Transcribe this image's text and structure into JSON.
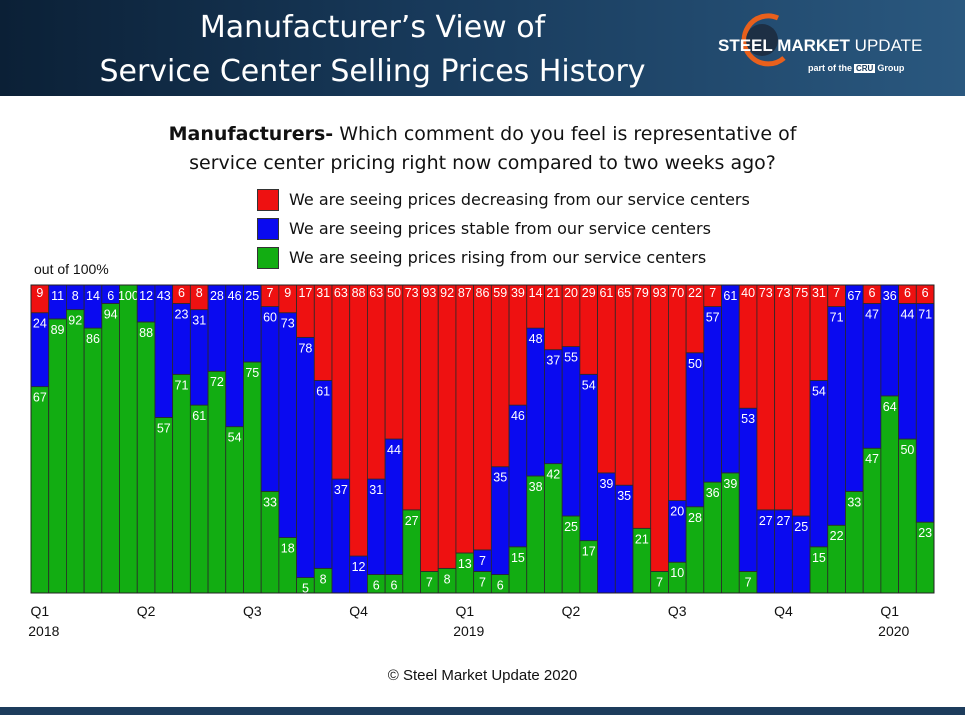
{
  "header": {
    "title_line1": "Manufacturer’s View of",
    "title_line2": "Service Center Selling Prices History",
    "logo_steel": "STEEL",
    "logo_market": "MARKET",
    "logo_update": "UPDATE",
    "logo_part_of": "part of the",
    "logo_cru": "CRU",
    "logo_group": "Group"
  },
  "question": {
    "bold": "Manufacturers-",
    "line1_rest": " Which comment do you feel is representative of",
    "line2": "service center pricing right now compared to two weeks ago?"
  },
  "legend": [
    {
      "label": "We are seeing prices decreasing from our service centers",
      "color": "#ee1111"
    },
    {
      "label": "We are seeing prices stable from our service centers",
      "color": "#0a0af0"
    },
    {
      "label": "We are seeing prices rising from our service centers",
      "color": "#12ad12"
    }
  ],
  "out_of_label": "out of 100%",
  "copyright": "© Steel Market Update 2020",
  "chart_data": {
    "type": "bar",
    "stacked": true,
    "ylim": [
      0,
      100
    ],
    "series": [
      {
        "name": "We are seeing prices rising from our service centers",
        "color": "#12ad12",
        "values": [
          67,
          89,
          92,
          86,
          94,
          100,
          88,
          57,
          71,
          61,
          72,
          54,
          75,
          33,
          18,
          5,
          8,
          0,
          0,
          6,
          6,
          27,
          7,
          8,
          13,
          7,
          6,
          15,
          38,
          42,
          25,
          17,
          0,
          0,
          21,
          7,
          10,
          28,
          36,
          39,
          7,
          0,
          0,
          0,
          15,
          22,
          33,
          47,
          64,
          50,
          23
        ]
      },
      {
        "name": "We are seeing prices stable from our service centers",
        "color": "#0a0af0",
        "values": [
          24,
          11,
          8,
          14,
          6,
          0,
          12,
          43,
          23,
          31,
          28,
          46,
          25,
          60,
          73,
          78,
          61,
          37,
          12,
          31,
          44,
          0,
          0,
          0,
          0,
          7,
          35,
          46,
          48,
          37,
          55,
          54,
          39,
          35,
          0,
          0,
          20,
          50,
          57,
          61,
          53,
          27,
          27,
          25,
          54,
          71,
          67,
          47,
          36,
          44,
          71
        ]
      },
      {
        "name": "We are seeing prices decreasing from our service centers",
        "color": "#ee1111",
        "values": [
          9,
          0,
          0,
          0,
          0,
          0,
          0,
          0,
          6,
          8,
          0,
          0,
          0,
          7,
          9,
          17,
          31,
          63,
          88,
          63,
          50,
          73,
          93,
          92,
          87,
          86,
          59,
          39,
          14,
          21,
          20,
          29,
          61,
          65,
          79,
          93,
          70,
          22,
          7,
          0,
          40,
          73,
          73,
          75,
          31,
          7,
          0,
          6,
          0,
          6,
          6
        ]
      }
    ],
    "labels": {
      "rising": [
        "67",
        "89",
        "92",
        "86",
        "94",
        "100",
        "88",
        "57",
        "71",
        "61",
        "72",
        "54",
        "75",
        "33",
        "18",
        "5",
        "8",
        "",
        "",
        "6",
        "6",
        "27",
        "7",
        "8",
        "13",
        "7",
        "6",
        "15",
        "38",
        "42",
        "25",
        "17",
        "",
        "",
        "21",
        "7",
        "10",
        "28",
        "36",
        "39",
        "7",
        "",
        "",
        "",
        "15",
        "22",
        "33",
        "47",
        "64",
        "50",
        "23"
      ],
      "stable": [
        "24",
        "11",
        "8",
        "14",
        "6",
        "",
        "12",
        "43",
        "23",
        "31",
        "28",
        "46",
        "25",
        "60",
        "73",
        "78",
        "61",
        "37",
        "12",
        "31",
        "44",
        "",
        "",
        "",
        "",
        "7",
        "35",
        "46",
        "48",
        "37",
        "55",
        "54",
        "39",
        "35",
        "",
        "",
        "20",
        "50",
        "57",
        "61",
        "53",
        "27",
        "27",
        "25",
        "54",
        "71",
        "67",
        "47",
        "36",
        "44",
        "71"
      ],
      "decreasing": [
        "9",
        "",
        "",
        "",
        "",
        "",
        "",
        "",
        "6",
        "8",
        "",
        "",
        "",
        "7",
        "9",
        "17",
        "31",
        "63",
        "88",
        "63",
        "50",
        "73",
        "93",
        "92",
        "87",
        "86",
        "59",
        "39",
        "14",
        "21",
        "20",
        "29",
        "61",
        "65",
        "79",
        "93",
        "70",
        "22",
        "7",
        "",
        "40",
        "73",
        "73",
        "75",
        "31",
        "7",
        "",
        "6",
        "",
        "6",
        "6"
      ]
    },
    "x_ticks": [
      {
        "label": "Q1",
        "year": "2018",
        "index": 0
      },
      {
        "label": "Q2",
        "year": "",
        "index": 6
      },
      {
        "label": "Q3",
        "year": "",
        "index": 12
      },
      {
        "label": "Q4",
        "year": "",
        "index": 18
      },
      {
        "label": "Q1",
        "year": "2019",
        "index": 24
      },
      {
        "label": "Q2",
        "year": "",
        "index": 30
      },
      {
        "label": "Q3",
        "year": "",
        "index": 36
      },
      {
        "label": "Q4",
        "year": "",
        "index": 42
      },
      {
        "label": "Q1",
        "year": "2020",
        "index": 48
      }
    ]
  }
}
